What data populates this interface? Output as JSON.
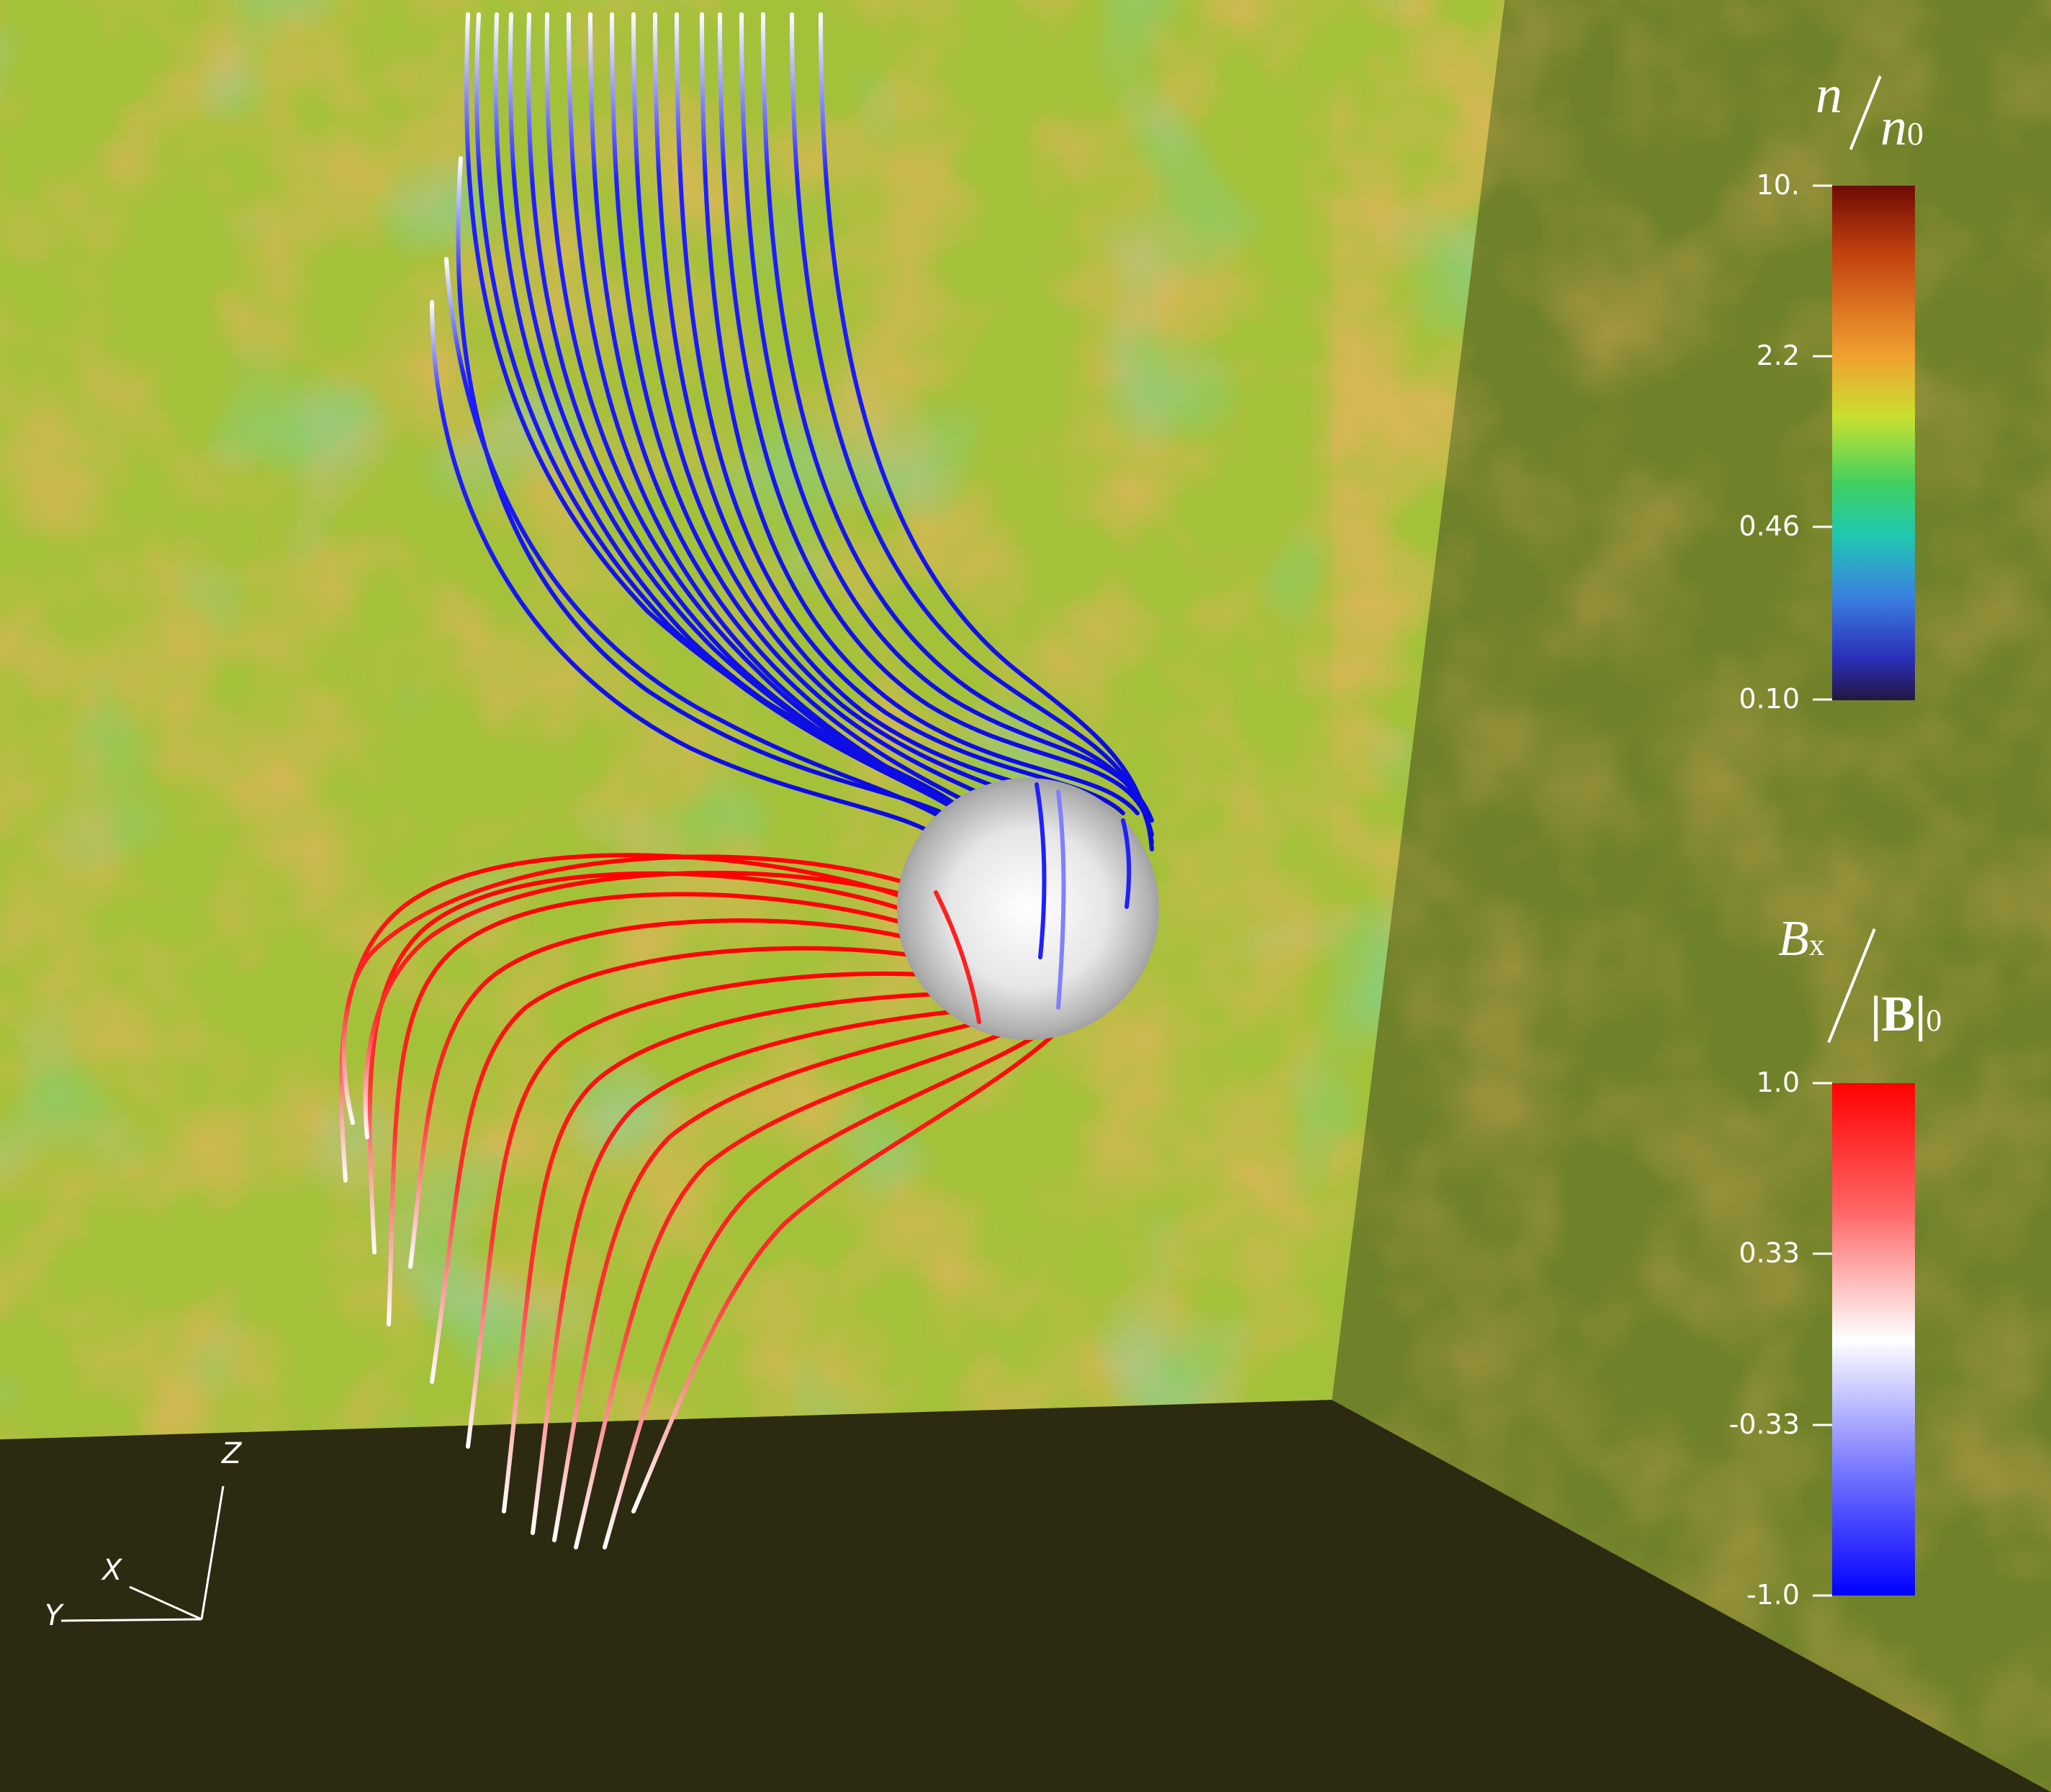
{
  "density_colorbar": {
    "title_symbol": "n",
    "title_denominator": "n",
    "title_denominator_subscript": "0",
    "ticks": [
      "10.",
      "2.2",
      "0.46",
      "0.10"
    ],
    "colors": [
      "#6e0b04",
      "#c2400f",
      "#f0a030",
      "#c8e030",
      "#40d060",
      "#20c8b0",
      "#3a80e0",
      "#2a2eb8",
      "#241640"
    ]
  },
  "bfield_colorbar": {
    "title_symbol": "B",
    "title_symbol_subscript": "x",
    "title_denominator": "|B|",
    "title_denominator_subscript": "0",
    "ticks": [
      "1.0",
      "0.33",
      "-0.33",
      "-1.0"
    ],
    "colors": [
      "#ff0000",
      "#ff7070",
      "#ffffff",
      "#8080ff",
      "#0000ff"
    ]
  },
  "axes_triad": {
    "labels": [
      "Z",
      "X",
      "Y"
    ]
  },
  "scene": {
    "back_wall_color": "#a0c038",
    "side_wall_color": "#6e8028",
    "floor_color": "#2c2a10",
    "sphere_color": "#e8e8e8",
    "field_lines_upper_color": "#1010e8",
    "field_lines_lower_color": "#ff1010"
  }
}
